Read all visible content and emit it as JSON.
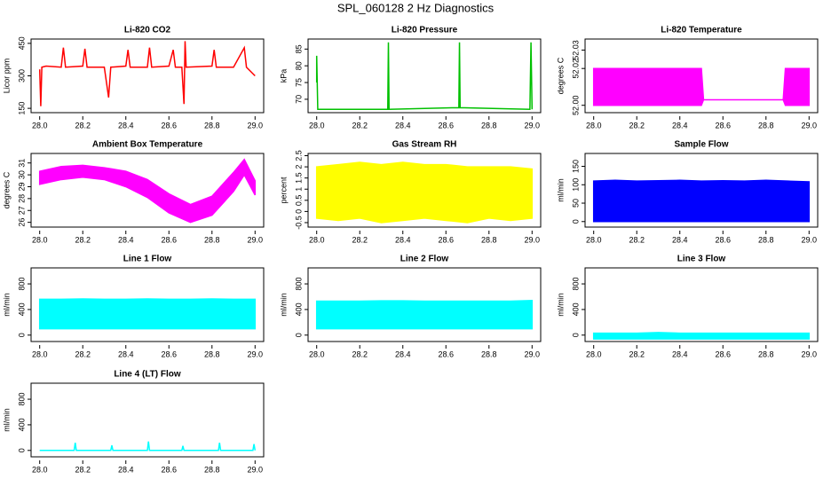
{
  "title": "SPL_060128  2 Hz Diagnostics",
  "chart_data": [
    {
      "type": "line",
      "title": "Li-820 CO2",
      "ylabel": "Licor ppm",
      "color": "#ff0000",
      "x": [
        28.0,
        28.005,
        28.01,
        28.03,
        28.1,
        28.11,
        28.12,
        28.2,
        28.21,
        28.22,
        28.3,
        28.32,
        28.33,
        28.4,
        28.41,
        28.42,
        28.5,
        28.51,
        28.52,
        28.6,
        28.62,
        28.63,
        28.66,
        28.67,
        28.675,
        28.68,
        28.8,
        28.81,
        28.82,
        28.9,
        28.95,
        28.96,
        29.0
      ],
      "values": [
        330,
        160,
        340,
        345,
        340,
        430,
        340,
        345,
        425,
        340,
        340,
        200,
        340,
        345,
        420,
        340,
        340,
        430,
        340,
        345,
        420,
        340,
        340,
        170,
        460,
        340,
        345,
        420,
        340,
        340,
        430,
        340,
        300
      ],
      "xlim": [
        27.96,
        29.04
      ],
      "xticks": [
        {
          "value": 28.0,
          "label": "28.0"
        },
        28.2,
        28.4,
        28.6,
        28.8,
        {
          "value": 29.0,
          "label": "29.0"
        }
      ],
      "ylim": [
        130,
        470
      ],
      "yticks": [
        150,
        300,
        450
      ]
    },
    {
      "type": "line",
      "title": "Li-820 Pressure",
      "ylabel": "kPa",
      "color": "#00c000",
      "x": [
        28.0,
        28.0,
        28.005,
        28.01,
        28.33,
        28.333,
        28.336,
        28.66,
        28.663,
        28.666,
        28.99,
        28.995,
        29.0
      ],
      "values": [
        75,
        83,
        67,
        67,
        67,
        87,
        67,
        67.5,
        87,
        67.5,
        67,
        87,
        67
      ],
      "xlim": [
        27.96,
        29.04
      ],
      "xticks": [
        {
          "value": 28.0,
          "label": "28.0"
        },
        28.2,
        28.4,
        28.6,
        28.8,
        {
          "value": 29.0,
          "label": "29.0"
        }
      ],
      "ylim": [
        66,
        88
      ],
      "yticks": [
        70,
        75,
        80,
        85
      ]
    },
    {
      "type": "band",
      "title": "Li-820 Temperature",
      "ylabel": "degrees C",
      "color": "#ff00ff",
      "x": [
        28.0,
        28.5,
        28.51,
        28.88,
        28.89,
        29.0
      ],
      "low": [
        52.0,
        52.0,
        52.003,
        52.003,
        52.0,
        52.0
      ],
      "high": [
        52.02,
        52.02,
        52.003,
        52.003,
        52.02,
        52.02
      ],
      "xlim": [
        27.96,
        29.04
      ],
      "xticks": [
        {
          "value": 28.0,
          "label": "28.0"
        },
        28.2,
        28.4,
        28.6,
        28.8,
        {
          "value": 29.0,
          "label": "29.0"
        }
      ],
      "ylim": [
        51.996,
        52.036
      ],
      "yticks": [
        {
          "value": 52.0,
          "label": "52.00"
        },
        52.02,
        52.03
      ]
    },
    {
      "type": "band",
      "title": "Ambient Box Temperature",
      "ylabel": "degrees C",
      "color": "#ff00ff",
      "x": [
        28.0,
        28.1,
        28.2,
        28.3,
        28.4,
        28.5,
        28.6,
        28.7,
        28.8,
        28.9,
        28.95,
        29.0
      ],
      "low": [
        29.2,
        29.6,
        29.8,
        29.6,
        29.0,
        28.1,
        26.8,
        26.0,
        26.6,
        28.6,
        30.0,
        28.3
      ],
      "high": [
        30.3,
        30.7,
        30.8,
        30.6,
        30.3,
        29.6,
        28.4,
        27.5,
        28.2,
        30.2,
        31.3,
        29.5
      ],
      "xlim": [
        27.96,
        29.04
      ],
      "xticks": [
        {
          "value": 28.0,
          "label": "28.0"
        },
        28.2,
        28.4,
        28.6,
        28.8,
        {
          "value": 29.0,
          "label": "29.0"
        }
      ],
      "ylim": [
        25.6,
        31.8
      ],
      "yticks": [
        26,
        27,
        28,
        29,
        30,
        31
      ]
    },
    {
      "type": "band",
      "title": "Gas Stream RH",
      "ylabel": "percent",
      "color": "#ffff00",
      "x": [
        28.0,
        28.1,
        28.2,
        28.3,
        28.4,
        28.5,
        28.6,
        28.7,
        28.8,
        28.9,
        29.0
      ],
      "low": [
        -0.3,
        -0.4,
        -0.3,
        -0.5,
        -0.4,
        -0.3,
        -0.4,
        -0.5,
        -0.3,
        -0.4,
        -0.3
      ],
      "high": [
        2.0,
        2.1,
        2.2,
        2.1,
        2.2,
        2.1,
        2.1,
        2.0,
        2.0,
        2.0,
        1.9
      ],
      "xlim": [
        27.96,
        29.04
      ],
      "xticks": [
        {
          "value": 28.0,
          "label": "28.0"
        },
        28.2,
        28.4,
        28.6,
        28.8,
        {
          "value": 29.0,
          "label": "29.0"
        }
      ],
      "ylim": [
        -0.7,
        2.6
      ],
      "yticks": [
        -0.5,
        0.0,
        0.5,
        1.0,
        1.5,
        2.0,
        2.5
      ]
    },
    {
      "type": "band",
      "title": "Sample Flow",
      "ylabel": "ml/min",
      "color": "#0000ff",
      "x": [
        28.0,
        28.1,
        28.2,
        28.3,
        28.4,
        28.5,
        28.6,
        28.7,
        28.8,
        28.9,
        29.0
      ],
      "low": [
        0,
        0,
        0,
        0,
        0,
        0,
        0,
        0,
        0,
        0,
        0
      ],
      "high": [
        110,
        112,
        110,
        111,
        112,
        110,
        111,
        110,
        112,
        110,
        108
      ],
      "xlim": [
        27.96,
        29.04
      ],
      "xticks": [
        {
          "value": 28.0,
          "label": "28.0"
        },
        28.2,
        28.4,
        28.6,
        28.8,
        {
          "value": 29.0,
          "label": "29.0"
        }
      ],
      "ylim": [
        -15,
        185
      ],
      "yticks": [
        0,
        50,
        100,
        150
      ]
    },
    {
      "type": "band",
      "title": "Line 1 Flow",
      "ylabel": "ml/min",
      "color": "#00ffff",
      "x": [
        28.0,
        28.1,
        28.2,
        28.3,
        28.4,
        28.5,
        28.6,
        28.7,
        28.8,
        28.9,
        29.0
      ],
      "low": [
        100,
        100,
        100,
        100,
        100,
        100,
        100,
        100,
        100,
        100,
        100
      ],
      "high": [
        560,
        560,
        565,
        560,
        560,
        565,
        560,
        560,
        565,
        560,
        560
      ],
      "xlim": [
        27.96,
        29.04
      ],
      "xticks": [
        {
          "value": 28.0,
          "label": "28.0"
        },
        28.2,
        28.4,
        28.6,
        28.8,
        {
          "value": 29.0,
          "label": "29.0"
        }
      ],
      "ylim": [
        -100,
        1050
      ],
      "yticks": [
        0,
        400,
        800
      ]
    },
    {
      "type": "band",
      "title": "Line 2 Flow",
      "ylabel": "ml/min",
      "color": "#00ffff",
      "x": [
        28.0,
        28.1,
        28.2,
        28.3,
        28.4,
        28.5,
        28.6,
        28.7,
        28.8,
        28.9,
        29.0
      ],
      "low": [
        100,
        100,
        100,
        100,
        100,
        100,
        100,
        100,
        100,
        100,
        100
      ],
      "high": [
        530,
        530,
        530,
        535,
        535,
        530,
        530,
        530,
        530,
        530,
        540
      ],
      "xlim": [
        27.96,
        29.04
      ],
      "xticks": [
        {
          "value": 28.0,
          "label": "28.0"
        },
        28.2,
        28.4,
        28.6,
        28.8,
        {
          "value": 29.0,
          "label": "29.0"
        }
      ],
      "ylim": [
        -100,
        1050
      ],
      "yticks": [
        0,
        400,
        800
      ]
    },
    {
      "type": "band",
      "title": "Line 3 Flow",
      "ylabel": "ml/min",
      "color": "#00ffff",
      "x": [
        28.0,
        28.1,
        28.2,
        28.3,
        28.4,
        28.5,
        28.6,
        28.7,
        28.8,
        28.9,
        29.0
      ],
      "low": [
        -60,
        -60,
        -60,
        -60,
        -60,
        -60,
        -60,
        -60,
        -60,
        -60,
        -60
      ],
      "high": [
        30,
        30,
        30,
        40,
        30,
        30,
        30,
        30,
        30,
        30,
        30
      ],
      "xlim": [
        27.96,
        29.04
      ],
      "xticks": [
        {
          "value": 28.0,
          "label": "28.0"
        },
        28.2,
        28.4,
        28.6,
        28.8,
        {
          "value": 29.0,
          "label": "29.0"
        }
      ],
      "ylim": [
        -100,
        1050
      ],
      "yticks": [
        0,
        400,
        800
      ]
    },
    {
      "type": "line",
      "title": "Line 4 (LT) Flow",
      "ylabel": "ml/min",
      "color": "#00ffff",
      "x": [
        28.0,
        28.16,
        28.165,
        28.17,
        28.33,
        28.335,
        28.34,
        28.5,
        28.505,
        28.51,
        28.66,
        28.665,
        28.67,
        28.83,
        28.835,
        28.84,
        28.99,
        28.995,
        29.0
      ],
      "values": [
        0,
        0,
        120,
        0,
        0,
        80,
        0,
        0,
        140,
        0,
        0,
        70,
        0,
        0,
        120,
        0,
        0,
        100,
        0
      ],
      "xlim": [
        27.96,
        29.04
      ],
      "xticks": [
        {
          "value": 28.0,
          "label": "28.0"
        },
        28.2,
        28.4,
        28.6,
        28.8,
        {
          "value": 29.0,
          "label": "29.0"
        }
      ],
      "ylim": [
        -100,
        1050
      ],
      "yticks": [
        0,
        400,
        800
      ]
    }
  ]
}
